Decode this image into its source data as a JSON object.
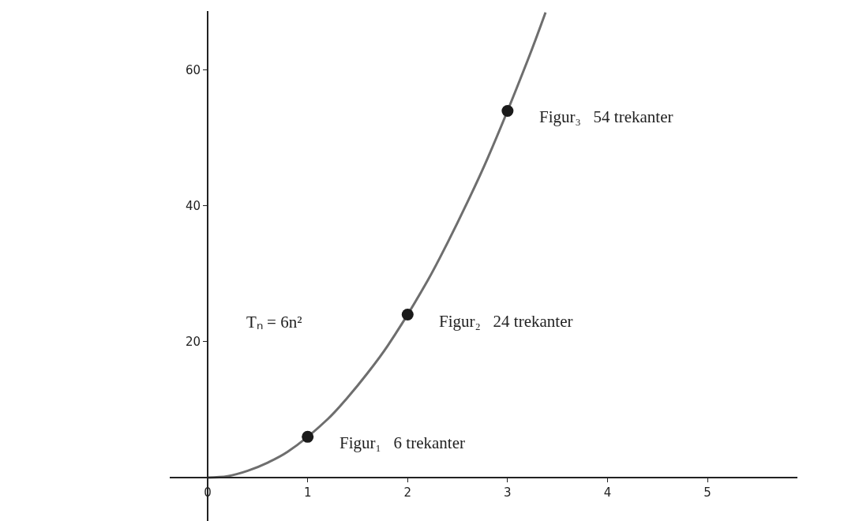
{
  "chart_data": {
    "type": "line",
    "series": [
      {
        "color": "#6e6e6e",
        "x": [
          0,
          0.2,
          0.4,
          0.6,
          0.8,
          1.2,
          1.4,
          1.6,
          1.8,
          2.2,
          2.4,
          2.6,
          2.8,
          3.2,
          3.38
        ],
        "values": [
          0,
          0.2,
          1,
          2.2,
          3.8,
          8.6,
          11.8,
          15.4,
          19.4,
          29,
          34.6,
          40.6,
          47,
          61.4,
          68.5
        ]
      },
      {
        "type": "scatter",
        "color": "#1a1a1a",
        "marker": "circle",
        "x": [
          1,
          2,
          3
        ],
        "values": [
          6,
          24,
          54
        ]
      }
    ],
    "annotations": [
      {
        "text": "Figur₁   6 trekanter",
        "x": 1,
        "y": 6
      },
      {
        "text": "Figur₂   24 trekanter",
        "x": 2,
        "y": 24
      },
      {
        "text": "Figur₃   54 trekanter",
        "x": 3,
        "y": 54
      },
      "Tₙ = 6n²"
    ],
    "xlim": [
      -0.38,
      5.9
    ],
    "ylim": [
      -6.4,
      68.7
    ],
    "xticks": [
      0,
      1,
      2,
      3,
      4,
      5
    ],
    "yticks": [
      20,
      40,
      60
    ],
    "tick_labels": true
  }
}
